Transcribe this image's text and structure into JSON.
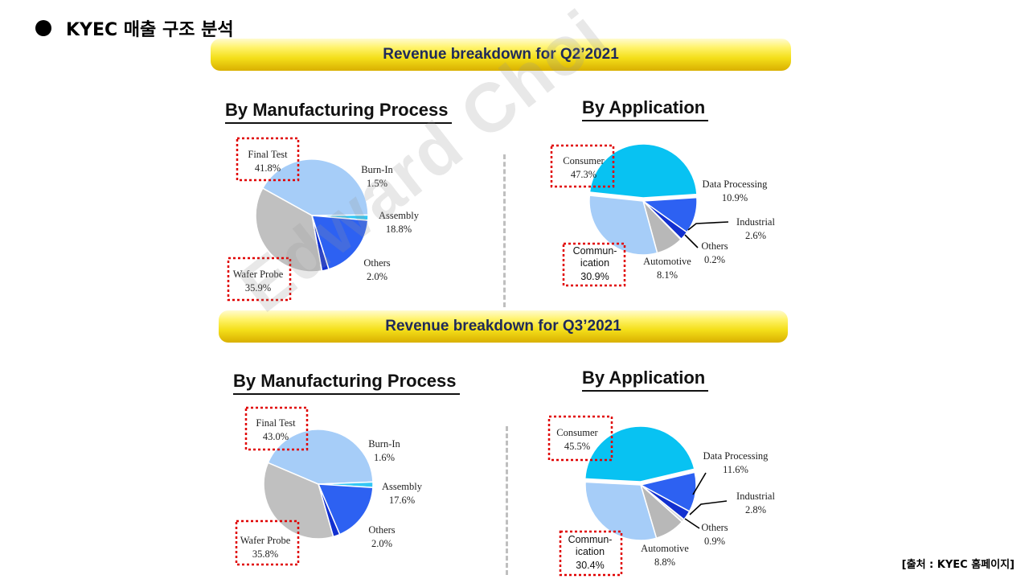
{
  "slide": {
    "title": "KYEC 매출 구조 분석",
    "source": "[출처 : KYEC 홈페이지]",
    "watermark": "Edward Choi"
  },
  "banners": {
    "q2": "Revenue breakdown for Q2’2021",
    "q3": "Revenue breakdown for Q3’2021"
  },
  "colors": {
    "final_test": "#a6cdf8",
    "burn_in": "#33c7f5",
    "assembly": "#2d61f2",
    "others_process": "#1230d0",
    "wafer_probe": "#c0c0c0",
    "consumer": "#08c2f2",
    "data_processing": "#2d61f2",
    "industrial": "#1230d0",
    "others_app": "#d8d8d8",
    "automotive": "#b8b8b8",
    "communication": "#a6cdf8",
    "highlight": "#e00000"
  },
  "chart_data": [
    {
      "type": "pie",
      "title": "By Manufacturing Process",
      "period": "Q2’2021",
      "slices": [
        {
          "label": "Final Test",
          "value": 41.8,
          "text": "41.8%",
          "color_key": "final_test",
          "highlighted": true
        },
        {
          "label": "Burn-In",
          "value": 1.5,
          "text": "1.5%",
          "color_key": "burn_in",
          "highlighted": false
        },
        {
          "label": "Assembly",
          "value": 18.8,
          "text": "18.8%",
          "color_key": "assembly",
          "highlighted": false
        },
        {
          "label": "Others",
          "value": 2.0,
          "text": "2.0%",
          "color_key": "others_process",
          "highlighted": false
        },
        {
          "label": "Wafer Probe",
          "value": 35.9,
          "text": "35.9%",
          "color_key": "wafer_probe",
          "highlighted": true
        }
      ]
    },
    {
      "type": "pie",
      "title": "By Application",
      "period": "Q2’2021",
      "slices": [
        {
          "label": "Consumer",
          "value": 47.3,
          "text": "47.3%",
          "color_key": "consumer",
          "highlighted": true
        },
        {
          "label": "Data Processing",
          "value": 10.9,
          "text": "10.9%",
          "color_key": "data_processing",
          "highlighted": false
        },
        {
          "label": "Industrial",
          "value": 2.6,
          "text": "2.6%",
          "color_key": "industrial",
          "highlighted": false
        },
        {
          "label": "Others",
          "value": 0.2,
          "text": "0.2%",
          "color_key": "others_app",
          "highlighted": false
        },
        {
          "label": "Automotive",
          "value": 8.1,
          "text": "8.1%",
          "color_key": "automotive",
          "highlighted": false
        },
        {
          "label": "Commun-\nication",
          "value": 30.9,
          "text": "30.9%",
          "color_key": "communication",
          "highlighted": true
        }
      ]
    },
    {
      "type": "pie",
      "title": "By Manufacturing Process",
      "period": "Q3’2021",
      "slices": [
        {
          "label": "Final Test",
          "value": 43.0,
          "text": "43.0%",
          "color_key": "final_test",
          "highlighted": true
        },
        {
          "label": "Burn-In",
          "value": 1.6,
          "text": "1.6%",
          "color_key": "burn_in",
          "highlighted": false
        },
        {
          "label": "Assembly",
          "value": 17.6,
          "text": "17.6%",
          "color_key": "assembly",
          "highlighted": false
        },
        {
          "label": "Others",
          "value": 2.0,
          "text": "2.0%",
          "color_key": "others_process",
          "highlighted": false
        },
        {
          "label": "Wafer Probe",
          "value": 35.8,
          "text": "35.8%",
          "color_key": "wafer_probe",
          "highlighted": true
        }
      ]
    },
    {
      "type": "pie",
      "title": "By Application",
      "period": "Q3’2021",
      "slices": [
        {
          "label": "Consumer",
          "value": 45.5,
          "text": "45.5%",
          "color_key": "consumer",
          "highlighted": true
        },
        {
          "label": "Data Processing",
          "value": 11.6,
          "text": "11.6%",
          "color_key": "data_processing",
          "highlighted": false
        },
        {
          "label": "Industrial",
          "value": 2.8,
          "text": "2.8%",
          "color_key": "industrial",
          "highlighted": false
        },
        {
          "label": "Others",
          "value": 0.9,
          "text": "0.9%",
          "color_key": "others_app",
          "highlighted": false
        },
        {
          "label": "Automotive",
          "value": 8.8,
          "text": "8.8%",
          "color_key": "automotive",
          "highlighted": false
        },
        {
          "label": "Commun-\nication",
          "value": 30.4,
          "text": "30.4%",
          "color_key": "communication",
          "highlighted": true
        }
      ]
    }
  ]
}
